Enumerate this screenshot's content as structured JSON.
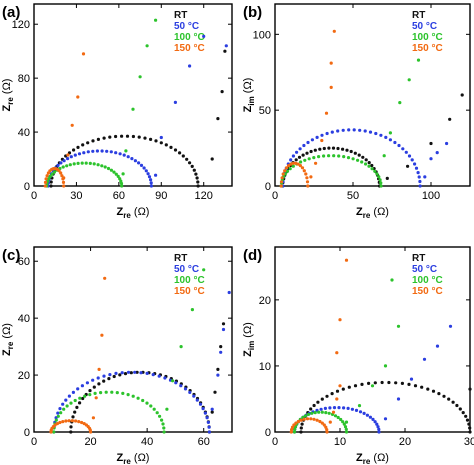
{
  "colors": {
    "RT": "#111111",
    "50 °C": "#2b3ee0",
    "100 °C": "#2cc32c",
    "150 °C": "#f26a12"
  },
  "chart_data": [
    {
      "panel": "(a)",
      "type": "scatter",
      "xlabel_main": "Z",
      "xlabel_sub": "re",
      "xlabel_unit": " (Ω)",
      "ylabel_main": "Z",
      "ylabel_sub": "re",
      "ylabel_unit": " (Ω)",
      "xlim": [
        0,
        140
      ],
      "ylim": [
        0,
        135
      ],
      "xticks": [
        0,
        30,
        60,
        90,
        120
      ],
      "yticks": [
        0,
        40,
        80,
        120
      ],
      "legend": [
        "RT",
        "50 °C",
        "100 °C",
        "150 °C"
      ],
      "legend_position": "top-right",
      "series": [
        {
          "name": "RT",
          "arc": {
            "R0": 12,
            "Rct": 104,
            "peak": 37,
            "n": 40
          },
          "tail": [
            [
              126,
              20
            ],
            [
              130,
              50
            ],
            [
              133,
              70
            ],
            [
              135,
              100
            ]
          ]
        },
        {
          "name": "50 °C",
          "arc": {
            "R0": 10,
            "Rct": 73,
            "peak": 26,
            "n": 36
          },
          "tail": [
            [
              86,
              8
            ],
            [
              90,
              36
            ],
            [
              100,
              62
            ],
            [
              110,
              89
            ],
            [
              120,
              111
            ],
            [
              136,
              104
            ]
          ]
        },
        {
          "name": "100 °C",
          "arc": {
            "R0": 9,
            "Rct": 53,
            "peak": 17,
            "n": 30
          },
          "tail": [
            [
              63,
              9
            ],
            [
              65,
              26
            ],
            [
              70,
              57
            ],
            [
              75,
              81
            ],
            [
              80,
              104
            ],
            [
              86,
              123
            ]
          ]
        },
        {
          "name": "150 °C",
          "arc": {
            "R0": 8,
            "Rct": 13,
            "peak": 13,
            "n": 16
          },
          "tail": [
            [
              21,
              6
            ],
            [
              24,
              23
            ],
            [
              27,
              45
            ],
            [
              31,
              66
            ],
            [
              35,
              98
            ]
          ]
        }
      ]
    },
    {
      "panel": "(b)",
      "type": "scatter",
      "xlabel_main": "Z",
      "xlabel_sub": "re",
      "xlabel_unit": " (Ω)",
      "ylabel_main": "Z",
      "ylabel_sub": "im",
      "ylabel_unit": " (Ω)",
      "xlim": [
        0,
        125
      ],
      "ylim": [
        0,
        120
      ],
      "xticks": [
        0,
        50,
        100
      ],
      "yticks": [
        0,
        50,
        100
      ],
      "legend": [
        "RT",
        "50 °C",
        "100 °C",
        "150 °C"
      ],
      "legend_position": "top-right",
      "series": [
        {
          "name": "RT",
          "arc": {
            "R0": 5,
            "Rct": 62,
            "peak": 25,
            "n": 34
          },
          "tail": [
            [
              72,
              5
            ],
            [
              85,
              13
            ],
            [
              100,
              28
            ],
            [
              112,
              44
            ],
            [
              120,
              60
            ]
          ]
        },
        {
          "name": "50 °C",
          "arc": {
            "R0": 5,
            "Rct": 88,
            "peak": 37,
            "n": 40
          },
          "tail": [
            [
              96,
              6
            ],
            [
              100,
              18
            ],
            [
              104,
              22
            ],
            [
              110,
              28
            ]
          ]
        },
        {
          "name": "100 °C",
          "arc": {
            "R0": 4,
            "Rct": 64,
            "peak": 20,
            "n": 32
          },
          "tail": [
            [
              70,
              20
            ],
            [
              74,
              35
            ],
            [
              80,
              55
            ],
            [
              86,
              70
            ],
            [
              92,
              83
            ]
          ]
        },
        {
          "name": "150 °C",
          "arc": {
            "R0": 4,
            "Rct": 17,
            "peak": 15,
            "n": 18
          },
          "tail": [
            [
              23,
              6
            ],
            [
              26,
              15
            ],
            [
              30,
              30
            ],
            [
              33,
              48
            ],
            [
              36,
              65
            ],
            [
              36,
              81
            ],
            [
              38,
              102
            ]
          ]
        }
      ]
    },
    {
      "panel": "(c)",
      "type": "scatter",
      "xlabel_main": "Z",
      "xlabel_sub": "re",
      "xlabel_unit": " (Ω)",
      "ylabel_main": "Z",
      "ylabel_sub": "re",
      "ylabel_unit": " (Ω)",
      "xlim": [
        0,
        70
      ],
      "ylim": [
        0,
        65
      ],
      "xticks": [
        0,
        20,
        40,
        60
      ],
      "yticks": [
        0,
        20,
        40,
        60
      ],
      "legend": [
        "RT",
        "50 °C",
        "100 °C",
        "150 °C"
      ],
      "legend_position": "top-right",
      "series": [
        {
          "name": "RT",
          "arc": {
            "R0": 13,
            "Rct": 49,
            "peak": 21,
            "n": 38
          },
          "tail": [
            [
              63,
              7
            ],
            [
              64,
              14
            ],
            [
              65,
              22
            ],
            [
              66,
              30
            ],
            [
              67,
              38
            ]
          ]
        },
        {
          "name": "50 °C",
          "arc": {
            "R0": 7,
            "Rct": 55,
            "peak": 21,
            "n": 40
          },
          "tail": [
            [
              63,
              8
            ],
            [
              65,
              20
            ],
            [
              66,
              28
            ],
            [
              67,
              36
            ],
            [
              69,
              49
            ]
          ]
        },
        {
          "name": "100 °C",
          "arc": {
            "R0": 7,
            "Rct": 39,
            "peak": 14,
            "n": 32
          },
          "tail": [
            [
              47,
              8
            ],
            [
              49,
              18
            ],
            [
              52,
              30
            ],
            [
              56,
              43
            ],
            [
              60,
              57
            ]
          ]
        },
        {
          "name": "150 °C",
          "arc": {
            "R0": 6,
            "Rct": 14,
            "peak": 4,
            "n": 20
          },
          "tail": [
            [
              21,
              5
            ],
            [
              22,
              12
            ],
            [
              23,
              22
            ],
            [
              24,
              34
            ],
            [
              25,
              54
            ]
          ]
        }
      ]
    },
    {
      "panel": "(d)",
      "type": "scatter",
      "xlabel_main": "Z",
      "xlabel_sub": "re",
      "xlabel_unit": " (Ω)",
      "ylabel_main": "Z",
      "ylabel_sub": "im",
      "ylabel_unit": " (Ω)",
      "xlim": [
        0,
        30
      ],
      "ylim": [
        0,
        28
      ],
      "xticks": [
        0,
        10,
        20,
        30
      ],
      "yticks": [
        0,
        10,
        20
      ],
      "legend": [
        "RT",
        "50 °C",
        "100 °C",
        "150 °C"
      ],
      "legend_position": "top-right",
      "series": [
        {
          "name": "RT",
          "arc": {
            "R0": 4,
            "Rct": 26,
            "peak": 7.5,
            "n": 40
          },
          "tail": [
            [
              30,
              6.5
            ]
          ]
        },
        {
          "name": "50 °C",
          "arc": {
            "R0": 3,
            "Rct": 13,
            "peak": 3.7,
            "n": 30
          },
          "tail": [
            [
              17,
              2
            ],
            [
              19,
              5
            ],
            [
              21,
              8
            ],
            [
              23,
              11
            ],
            [
              25,
              13
            ],
            [
              27,
              16
            ]
          ]
        },
        {
          "name": "100 °C",
          "arc": {
            "R0": 3,
            "Rct": 8,
            "peak": 3,
            "n": 24
          },
          "tail": [
            [
              11,
              1.5
            ],
            [
              13,
              4
            ],
            [
              15,
              7
            ],
            [
              17,
              10
            ],
            [
              18,
              23
            ],
            [
              19,
              16
            ]
          ]
        },
        {
          "name": "150 °C",
          "arc": {
            "R0": 2.5,
            "Rct": 5.5,
            "peak": 2,
            "n": 18
          },
          "tail": [
            [
              8.5,
              1.5
            ],
            [
              9,
              3
            ],
            [
              9.5,
              5
            ],
            [
              10,
              7
            ],
            [
              9.5,
              12
            ],
            [
              10,
              17
            ],
            [
              11,
              26
            ]
          ]
        }
      ]
    }
  ]
}
